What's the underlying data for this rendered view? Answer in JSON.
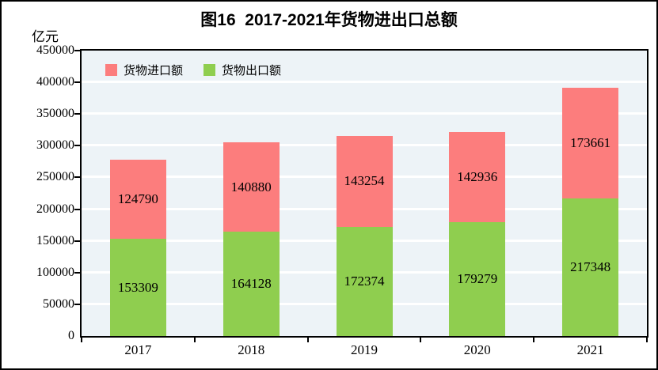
{
  "chart_data": {
    "type": "bar",
    "stacked": true,
    "title": "图16  2017-2021年货物进出口总额",
    "ylabel": "亿元",
    "categories": [
      "2017",
      "2018",
      "2019",
      "2020",
      "2021"
    ],
    "series": [
      {
        "name": "货物出口额",
        "color": "#8FCE4F",
        "values": [
          153309,
          164128,
          172374,
          179279,
          217348
        ]
      },
      {
        "name": "货物进口额",
        "color": "#FC7D7D",
        "values": [
          124790,
          140880,
          143254,
          142936,
          173661
        ]
      }
    ],
    "legend": [
      {
        "label": "货物进口额",
        "color": "#FC7D7D"
      },
      {
        "label": "货物出口额",
        "color": "#8FCE4F"
      }
    ],
    "legend_position": "top-left-inside",
    "ylim": [
      0,
      450000
    ],
    "ytick_step": 50000,
    "grid": true,
    "colors": {
      "plot_bg": "#EDF3F7",
      "grid": "#FFFFFF",
      "axis": "#000000",
      "text": "#000000"
    }
  }
}
